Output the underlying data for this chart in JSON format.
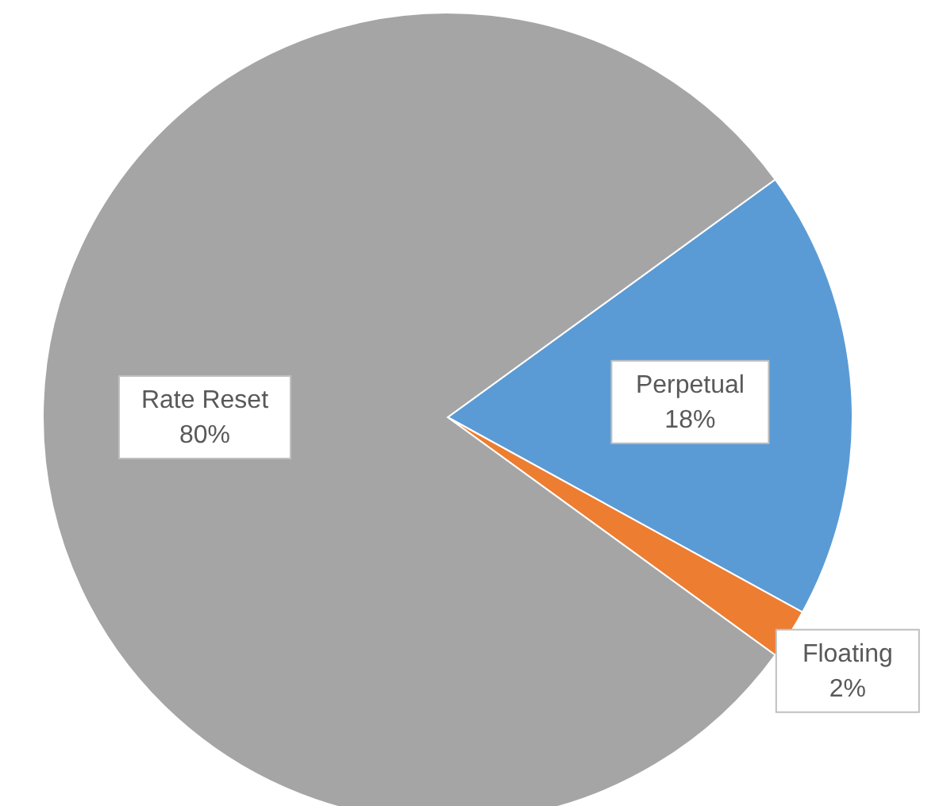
{
  "chart_data": {
    "type": "pie",
    "categories": [
      "Perpetual",
      "Floating",
      "Rate Reset"
    ],
    "values": [
      18,
      2,
      80
    ],
    "colors": [
      "#5b9bd5",
      "#ed7d31",
      "#a5a5a5"
    ],
    "value_labels": [
      "18%",
      "2%",
      "80%"
    ],
    "legend": false
  }
}
